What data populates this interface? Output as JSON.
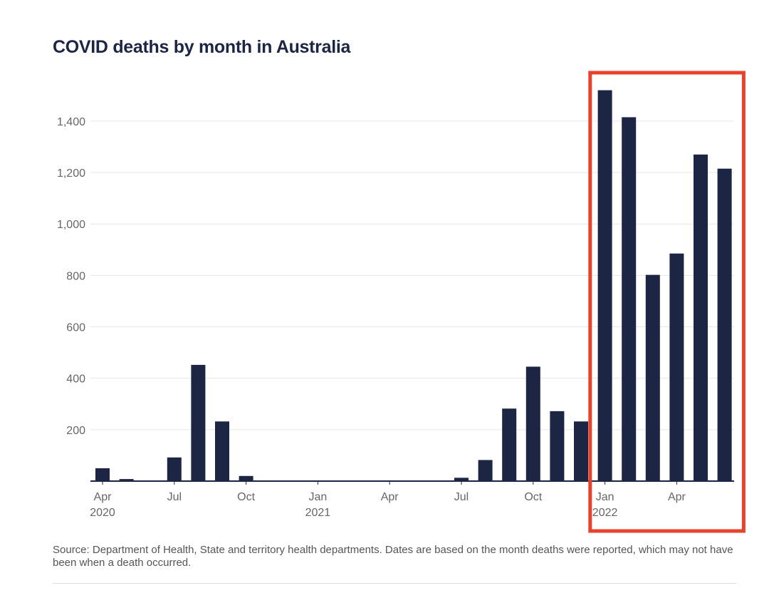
{
  "title": "COVID deaths by month in Australia",
  "source": "Source: Department of Health, State and territory health departments. Dates are based on the month deaths were reported, which may not have been when a death occurred.",
  "colors": {
    "bar": "#1c2544",
    "highlight_box": "#e8412c",
    "grid": "#e6e6e6",
    "axis": "#1c2544",
    "tick_text": "#666666"
  },
  "chart_data": {
    "type": "bar",
    "title": "COVID deaths by month in Australia",
    "xlabel": "",
    "ylabel": "",
    "ylim": [
      0,
      1500
    ],
    "grid": true,
    "yticks": [
      {
        "value": 200,
        "label": "200"
      },
      {
        "value": 400,
        "label": "400"
      },
      {
        "value": 600,
        "label": "600"
      },
      {
        "value": 800,
        "label": "800"
      },
      {
        "value": 1000,
        "label": "1,000"
      },
      {
        "value": 1200,
        "label": "1,200"
      },
      {
        "value": 1400,
        "label": "1,400"
      }
    ],
    "categories": [
      "2020-04",
      "2020-05",
      "2020-06",
      "2020-07",
      "2020-08",
      "2020-09",
      "2020-10",
      "2020-11",
      "2020-12",
      "2021-01",
      "2021-02",
      "2021-03",
      "2021-04",
      "2021-05",
      "2021-06",
      "2021-07",
      "2021-08",
      "2021-09",
      "2021-10",
      "2021-11",
      "2021-12",
      "2022-01",
      "2022-02",
      "2022-03",
      "2022-04",
      "2022-05",
      "2022-06"
    ],
    "values": [
      50,
      8,
      2,
      92,
      452,
      232,
      20,
      0,
      0,
      0,
      0,
      0,
      1,
      1,
      1,
      13,
      82,
      282,
      445,
      272,
      232,
      1520,
      1415,
      802,
      885,
      1270,
      1215
    ],
    "xticks": [
      {
        "index": 0,
        "label": "Apr",
        "year": "2020"
      },
      {
        "index": 3,
        "label": "Jul",
        "year": ""
      },
      {
        "index": 6,
        "label": "Oct",
        "year": ""
      },
      {
        "index": 9,
        "label": "Jan",
        "year": "2021"
      },
      {
        "index": 12,
        "label": "Apr",
        "year": ""
      },
      {
        "index": 15,
        "label": "Jul",
        "year": ""
      },
      {
        "index": 18,
        "label": "Oct",
        "year": ""
      },
      {
        "index": 21,
        "label": "Jan",
        "year": "2022"
      },
      {
        "index": 24,
        "label": "Apr",
        "year": ""
      }
    ],
    "annotations": [
      {
        "type": "highlight-box",
        "from_index": 21,
        "to_index": 26
      }
    ]
  }
}
